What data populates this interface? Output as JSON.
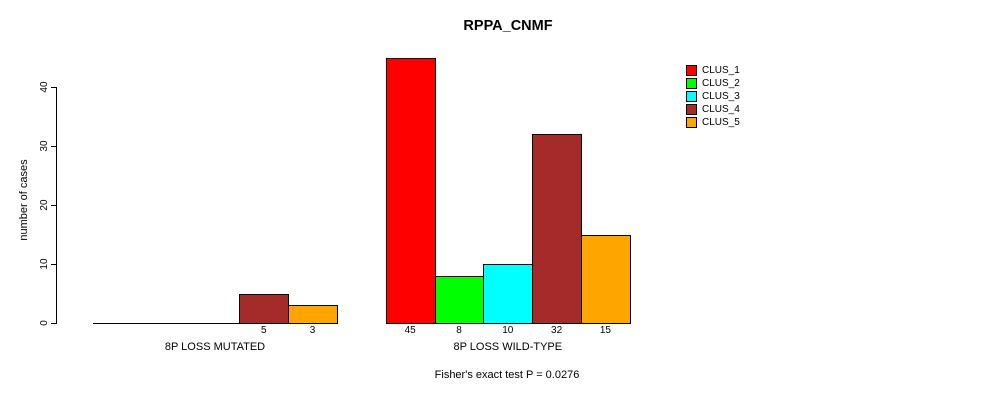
{
  "chart_data": {
    "type": "bar",
    "title": "RPPA_CNMF",
    "ylabel": "number of cases",
    "xlabel": "",
    "ylim": [
      0,
      45
    ],
    "yticks": [
      0,
      10,
      20,
      30,
      40
    ],
    "grid": false,
    "series": [
      "CLUS_1",
      "CLUS_2",
      "CLUS_3",
      "CLUS_4",
      "CLUS_5"
    ],
    "colors": [
      "#FF0000",
      "#00FF00",
      "#00FFFF",
      "#A52A2A",
      "#FFA500"
    ],
    "bar_border_color": "#000000",
    "groups": [
      {
        "label": "8P LOSS MUTATED",
        "values": [
          0,
          0,
          0,
          5,
          3
        ]
      },
      {
        "label": "8P LOSS WILD-TYPE",
        "values": [
          45,
          8,
          10,
          32,
          15
        ]
      }
    ],
    "legend": {
      "position": "top-right",
      "entries": [
        "CLUS_1",
        "CLUS_2",
        "CLUS_3",
        "CLUS_4",
        "CLUS_5"
      ]
    },
    "footer": "Fisher's exact test P = 0.0276"
  }
}
